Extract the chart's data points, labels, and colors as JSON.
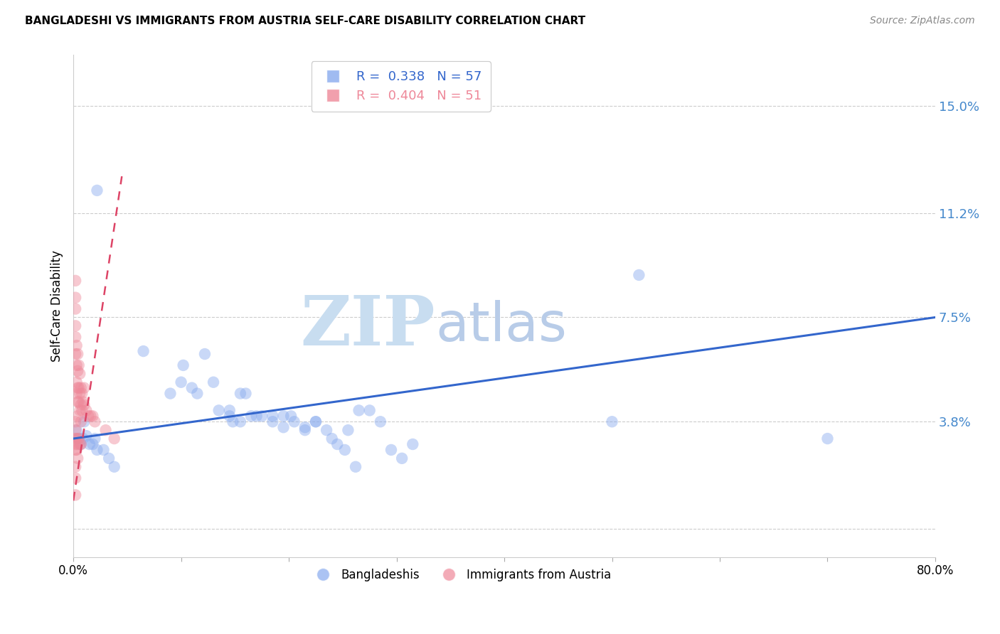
{
  "title": "BANGLADESHI VS IMMIGRANTS FROM AUSTRIA SELF-CARE DISABILITY CORRELATION CHART",
  "source": "Source: ZipAtlas.com",
  "ylabel_label": "Self-Care Disability",
  "ylabel_ticks": [
    0.0,
    0.038,
    0.075,
    0.112,
    0.15
  ],
  "ylabel_tick_labels": [
    "",
    "3.8%",
    "7.5%",
    "11.2%",
    "15.0%"
  ],
  "xmin": 0.0,
  "xmax": 0.8,
  "ymin": -0.01,
  "ymax": 0.168,
  "blue_R": 0.338,
  "blue_N": 57,
  "pink_R": 0.404,
  "pink_N": 51,
  "blue_color": "#88aaee",
  "pink_color": "#ee8899",
  "blue_line_color": "#3366cc",
  "pink_line_color": "#dd4466",
  "watermark_zip": "ZIP",
  "watermark_atlas": "atlas",
  "watermark_color_zip": "#c8ddf0",
  "watermark_color_atlas": "#b8cce8",
  "legend_label_blue": "Bangladeshis",
  "legend_label_pink": "Immigrants from Austria",
  "blue_line_x0": 0.0,
  "blue_line_y0": 0.032,
  "blue_line_x1": 0.8,
  "blue_line_y1": 0.075,
  "pink_line_x0": 0.0,
  "pink_line_y0": 0.01,
  "pink_line_x1": 0.045,
  "pink_line_y1": 0.125,
  "blue_scatter_x": [
    0.022,
    0.01,
    0.065,
    0.09,
    0.115,
    0.1,
    0.135,
    0.145,
    0.16,
    0.185,
    0.145,
    0.155,
    0.175,
    0.195,
    0.205,
    0.225,
    0.215,
    0.235,
    0.245,
    0.255,
    0.265,
    0.275,
    0.285,
    0.295,
    0.305,
    0.315,
    0.11,
    0.13,
    0.155,
    0.165,
    0.17,
    0.185,
    0.195,
    0.215,
    0.225,
    0.102,
    0.122,
    0.24,
    0.252,
    0.262,
    0.202,
    0.5,
    0.525,
    0.7,
    0.003,
    0.005,
    0.007,
    0.009,
    0.012,
    0.015,
    0.018,
    0.02,
    0.022,
    0.028,
    0.033,
    0.038,
    0.148
  ],
  "blue_scatter_y": [
    0.12,
    0.038,
    0.063,
    0.048,
    0.048,
    0.052,
    0.042,
    0.04,
    0.048,
    0.04,
    0.042,
    0.038,
    0.04,
    0.04,
    0.038,
    0.038,
    0.035,
    0.035,
    0.03,
    0.035,
    0.042,
    0.042,
    0.038,
    0.028,
    0.025,
    0.03,
    0.05,
    0.052,
    0.048,
    0.04,
    0.04,
    0.038,
    0.036,
    0.036,
    0.038,
    0.058,
    0.062,
    0.032,
    0.028,
    0.022,
    0.04,
    0.038,
    0.09,
    0.032,
    0.035,
    0.032,
    0.03,
    0.032,
    0.033,
    0.03,
    0.03,
    0.032,
    0.028,
    0.028,
    0.025,
    0.022,
    0.038
  ],
  "pink_scatter_x": [
    0.002,
    0.002,
    0.002,
    0.002,
    0.002,
    0.002,
    0.003,
    0.003,
    0.003,
    0.003,
    0.004,
    0.004,
    0.004,
    0.004,
    0.004,
    0.005,
    0.005,
    0.005,
    0.006,
    0.006,
    0.006,
    0.007,
    0.007,
    0.007,
    0.008,
    0.008,
    0.009,
    0.01,
    0.01,
    0.012,
    0.014,
    0.016,
    0.018,
    0.02,
    0.002,
    0.002,
    0.002,
    0.002,
    0.002,
    0.003,
    0.003,
    0.004,
    0.004,
    0.005,
    0.006,
    0.007,
    0.03,
    0.038,
    0.002,
    0.002,
    0.002
  ],
  "pink_scatter_y": [
    0.088,
    0.082,
    0.078,
    0.072,
    0.068,
    0.062,
    0.065,
    0.058,
    0.052,
    0.048,
    0.062,
    0.056,
    0.05,
    0.045,
    0.04,
    0.058,
    0.05,
    0.045,
    0.055,
    0.048,
    0.042,
    0.05,
    0.044,
    0.038,
    0.048,
    0.042,
    0.045,
    0.05,
    0.044,
    0.042,
    0.04,
    0.04,
    0.04,
    0.038,
    0.038,
    0.035,
    0.032,
    0.03,
    0.028,
    0.032,
    0.028,
    0.03,
    0.025,
    0.032,
    0.03,
    0.03,
    0.035,
    0.032,
    0.022,
    0.018,
    0.012
  ]
}
